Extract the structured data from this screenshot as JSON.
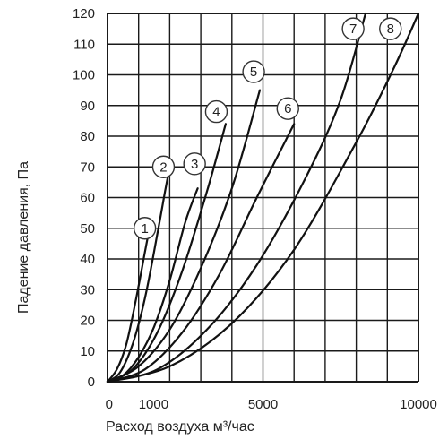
{
  "chart_data": {
    "type": "line",
    "title": "",
    "xlabel": "Расход воздуха м³/час",
    "ylabel": "Падение давления, Па",
    "xlim": [
      0,
      10000
    ],
    "ylim": [
      0,
      120
    ],
    "grid": true,
    "x_tick_values": [
      0,
      1000,
      5000,
      10000
    ],
    "x_tick_labels": [
      "0",
      "1000",
      "5000",
      "10000"
    ],
    "y_ticks": [
      0,
      10,
      20,
      30,
      40,
      50,
      60,
      70,
      80,
      90,
      100,
      110,
      120
    ],
    "series": [
      {
        "name": "1",
        "points": [
          [
            0,
            0
          ],
          [
            300,
            4
          ],
          [
            600,
            12
          ],
          [
            900,
            26
          ],
          [
            1200,
            42
          ],
          [
            1350,
            50
          ]
        ]
      },
      {
        "name": "2",
        "points": [
          [
            0,
            0
          ],
          [
            400,
            3
          ],
          [
            800,
            12
          ],
          [
            1200,
            27
          ],
          [
            1600,
            48
          ],
          [
            1850,
            62
          ],
          [
            2000,
            70
          ]
        ]
      },
      {
        "name": "3",
        "points": [
          [
            0,
            0
          ],
          [
            500,
            2
          ],
          [
            1000,
            8
          ],
          [
            1500,
            18
          ],
          [
            2000,
            33
          ],
          [
            2500,
            52
          ],
          [
            2900,
            63
          ]
        ]
      },
      {
        "name": "4",
        "points": [
          [
            0,
            0
          ],
          [
            800,
            4
          ],
          [
            1600,
            16
          ],
          [
            2400,
            36
          ],
          [
            3200,
            62
          ],
          [
            3800,
            84
          ]
        ]
      },
      {
        "name": "5",
        "points": [
          [
            0,
            0
          ],
          [
            1000,
            5
          ],
          [
            2000,
            17
          ],
          [
            3000,
            37
          ],
          [
            4000,
            63
          ],
          [
            4900,
            95
          ]
        ]
      },
      {
        "name": "6",
        "points": [
          [
            0,
            0
          ],
          [
            1200,
            4
          ],
          [
            2400,
            16
          ],
          [
            3600,
            35
          ],
          [
            4800,
            60
          ],
          [
            6000,
            84
          ]
        ]
      },
      {
        "name": "7",
        "points": [
          [
            0,
            0
          ],
          [
            1600,
            4
          ],
          [
            3200,
            17
          ],
          [
            4800,
            38
          ],
          [
            6400,
            67
          ],
          [
            7500,
            92
          ],
          [
            8300,
            120
          ]
        ]
      },
      {
        "name": "8",
        "points": [
          [
            0,
            0
          ],
          [
            2000,
            5
          ],
          [
            4000,
            19
          ],
          [
            6000,
            43
          ],
          [
            8000,
            78
          ],
          [
            9200,
            102
          ],
          [
            10000,
            120
          ]
        ]
      }
    ],
    "curve_labels": [
      {
        "text": "1",
        "x": 1200,
        "y": 50
      },
      {
        "text": "2",
        "x": 1800,
        "y": 70
      },
      {
        "text": "3",
        "x": 2800,
        "y": 71
      },
      {
        "text": "4",
        "x": 3500,
        "y": 88
      },
      {
        "text": "5",
        "x": 4700,
        "y": 101
      },
      {
        "text": "6",
        "x": 5800,
        "y": 89
      },
      {
        "text": "7",
        "x": 7900,
        "y": 115
      },
      {
        "text": "8",
        "x": 9100,
        "y": 115
      }
    ]
  }
}
